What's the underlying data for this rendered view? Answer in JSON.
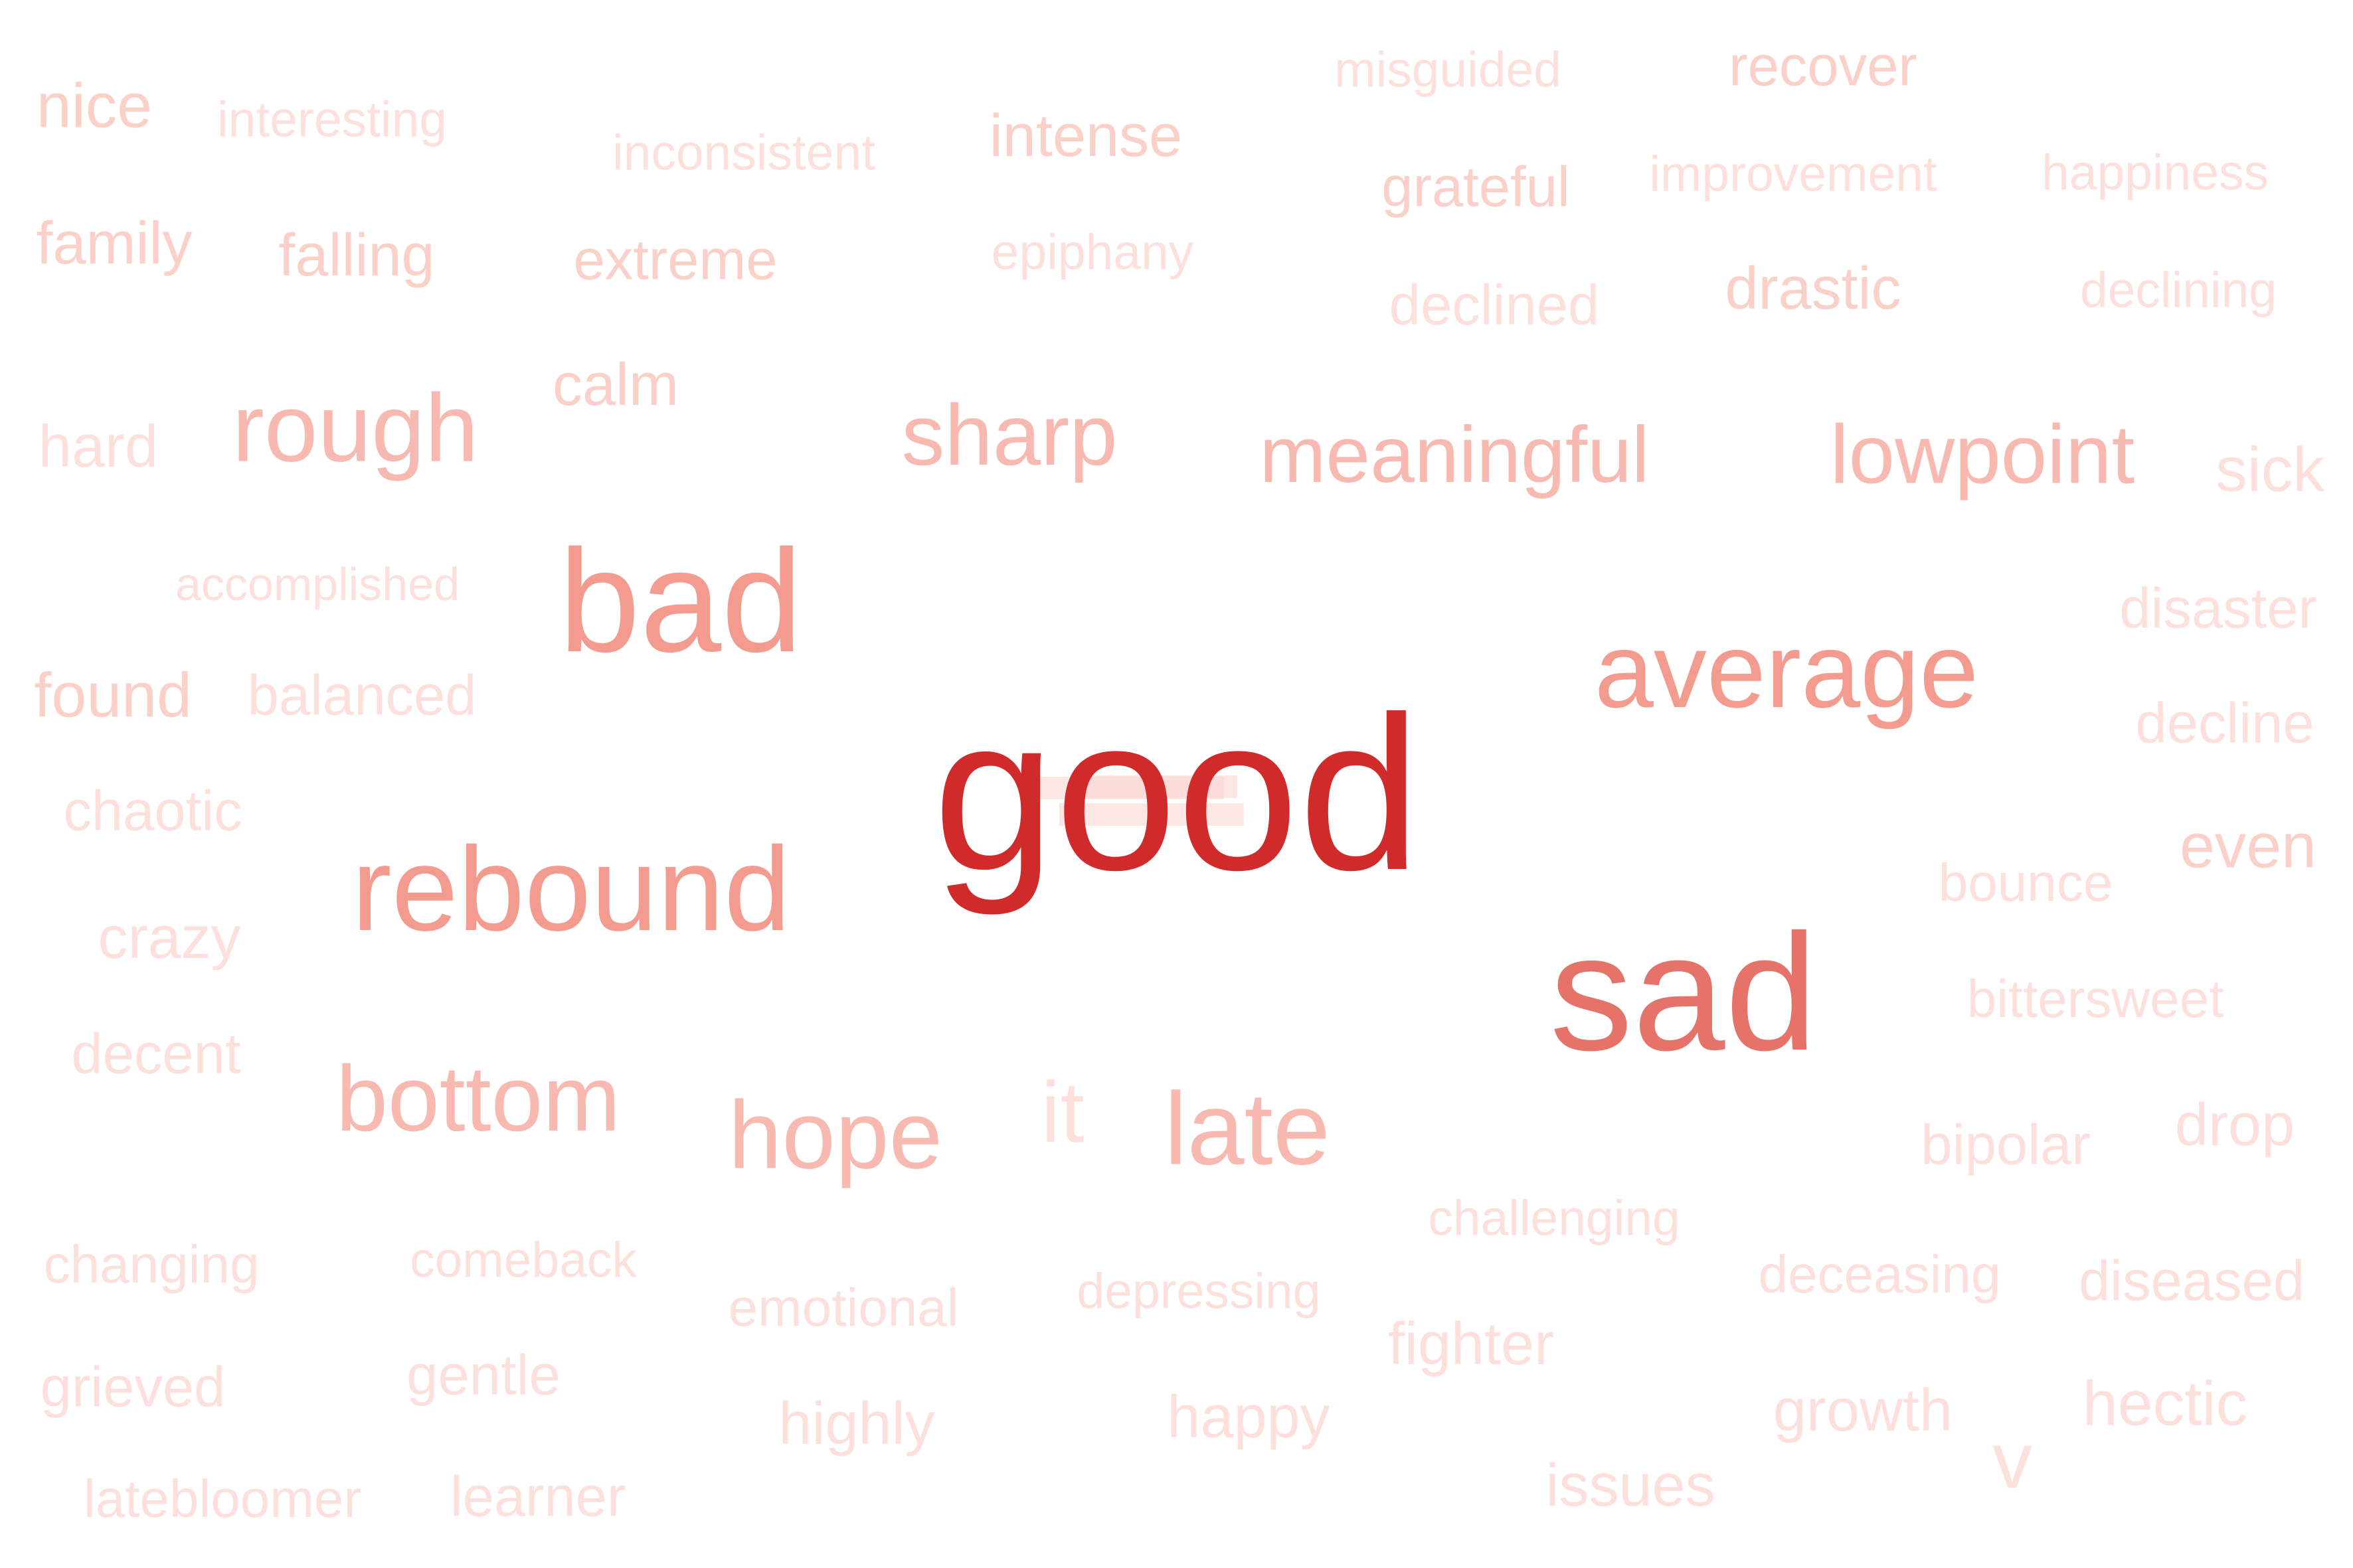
{
  "words": [
    {
      "text": "good",
      "tone": 6
    },
    {
      "text": "sad",
      "tone": 5
    },
    {
      "text": "bad",
      "tone": 4
    },
    {
      "text": "average",
      "tone": 4
    },
    {
      "text": "rebound",
      "tone": 4
    },
    {
      "text": "rough",
      "tone": 3
    },
    {
      "text": "sharp",
      "tone": 3
    },
    {
      "text": "meaningful",
      "tone": 3
    },
    {
      "text": "lowpoint",
      "tone": 3
    },
    {
      "text": "bottom",
      "tone": 3
    },
    {
      "text": "hope",
      "tone": 3
    },
    {
      "text": "late",
      "tone": 3
    },
    {
      "text": "nice",
      "tone": 2
    },
    {
      "text": "interesting",
      "tone": 1
    },
    {
      "text": "inconsistent",
      "tone": 1
    },
    {
      "text": "intense",
      "tone": 2
    },
    {
      "text": "misguided",
      "tone": 1
    },
    {
      "text": "recover",
      "tone": 2
    },
    {
      "text": "grateful",
      "tone": 2
    },
    {
      "text": "improvement",
      "tone": 1
    },
    {
      "text": "happiness",
      "tone": 1
    },
    {
      "text": "family",
      "tone": 2
    },
    {
      "text": "falling",
      "tone": 2
    },
    {
      "text": "extreme",
      "tone": 2
    },
    {
      "text": "epiphany",
      "tone": 1
    },
    {
      "text": "declined",
      "tone": 1
    },
    {
      "text": "drastic",
      "tone": 2
    },
    {
      "text": "declining",
      "tone": 1
    },
    {
      "text": "calm",
      "tone": 2
    },
    {
      "text": "hard",
      "tone": 1
    },
    {
      "text": "sick",
      "tone": 1
    },
    {
      "text": "accomplished",
      "tone": 1
    },
    {
      "text": "disaster",
      "tone": 1
    },
    {
      "text": "found",
      "tone": 2
    },
    {
      "text": "balanced",
      "tone": 1
    },
    {
      "text": "decline",
      "tone": 1
    },
    {
      "text": "chaotic",
      "tone": 1
    },
    {
      "text": "even",
      "tone": 2
    },
    {
      "text": "bounce",
      "tone": 1
    },
    {
      "text": "crazy",
      "tone": 1
    },
    {
      "text": "bittersweet",
      "tone": 1
    },
    {
      "text": "decent",
      "tone": 1
    },
    {
      "text": "it",
      "tone": 1
    },
    {
      "text": "bipolar",
      "tone": 1
    },
    {
      "text": "drop",
      "tone": 1
    },
    {
      "text": "challenging",
      "tone": 1
    },
    {
      "text": "changing",
      "tone": 1
    },
    {
      "text": "comeback",
      "tone": 1
    },
    {
      "text": "emotional",
      "tone": 1
    },
    {
      "text": "depressing",
      "tone": 1
    },
    {
      "text": "deceasing",
      "tone": 1
    },
    {
      "text": "diseased",
      "tone": 1
    },
    {
      "text": "fighter",
      "tone": 1
    },
    {
      "text": "grieved",
      "tone": 1
    },
    {
      "text": "gentle",
      "tone": 1
    },
    {
      "text": "highly",
      "tone": 1
    },
    {
      "text": "happy",
      "tone": 1
    },
    {
      "text": "growth",
      "tone": 1
    },
    {
      "text": "hectic",
      "tone": 1
    },
    {
      "text": "v",
      "tone": 1
    },
    {
      "text": "issues",
      "tone": 1
    },
    {
      "text": "latebloomer",
      "tone": 1
    },
    {
      "text": "learner",
      "tone": 1
    }
  ]
}
